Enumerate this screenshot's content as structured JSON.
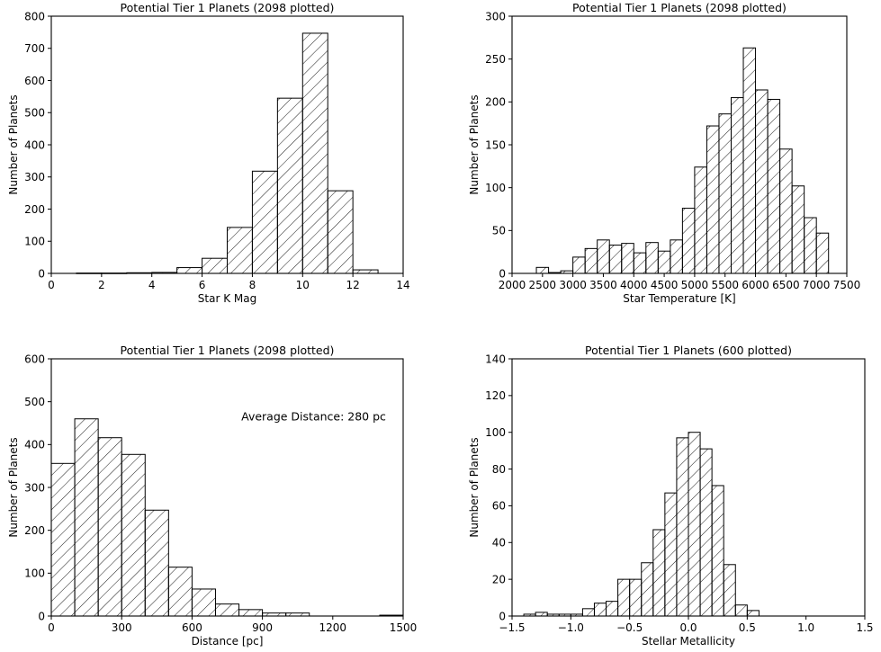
{
  "chart_data": [
    {
      "type": "histogram",
      "title": "Potential Tier 1 Planets (2098 plotted)",
      "xlabel": "Star K Mag",
      "ylabel": "Number of Planets",
      "xlim": [
        0,
        14
      ],
      "ylim": [
        0,
        800
      ],
      "xticks": [
        0,
        2,
        4,
        6,
        8,
        10,
        12,
        14
      ],
      "yticks": [
        0,
        100,
        200,
        300,
        400,
        500,
        600,
        700,
        800
      ],
      "bins": [
        1,
        2,
        3,
        4,
        5,
        6,
        7,
        8,
        9,
        10,
        11,
        12,
        13
      ],
      "values": [
        1,
        1,
        2,
        3,
        18,
        47,
        143,
        318,
        545,
        747,
        257,
        11
      ],
      "annotation": ""
    },
    {
      "type": "histogram",
      "title": "Potential Tier 1 Planets (2098 plotted)",
      "xlabel": "Star Temperature [K]",
      "ylabel": "Number of Planets",
      "xlim": [
        2000,
        7500
      ],
      "ylim": [
        0,
        300
      ],
      "xticks": [
        2000,
        2500,
        3000,
        3500,
        4000,
        4500,
        5000,
        5500,
        6000,
        6500,
        7000,
        7500
      ],
      "yticks": [
        0,
        50,
        100,
        150,
        200,
        250,
        300
      ],
      "bins": [
        2400,
        2600,
        2800,
        3000,
        3200,
        3400,
        3600,
        3800,
        4000,
        4200,
        4400,
        4600,
        4800,
        5000,
        5200,
        5400,
        5600,
        5800,
        6000,
        6200,
        6400,
        6600,
        6800,
        7000,
        7200
      ],
      "values": [
        7,
        1,
        3,
        19,
        29,
        39,
        33,
        35,
        24,
        36,
        26,
        39,
        76,
        124,
        172,
        186,
        205,
        263,
        214,
        203,
        145,
        102,
        65,
        47
      ],
      "annotation": ""
    },
    {
      "type": "histogram",
      "title": "Potential Tier 1 Planets (2098 plotted)",
      "xlabel": "Distance [pc]",
      "ylabel": "Number of Planets",
      "xlim": [
        0,
        1500
      ],
      "ylim": [
        0,
        600
      ],
      "xticks": [
        0,
        300,
        600,
        900,
        1200,
        1500
      ],
      "yticks": [
        0,
        100,
        200,
        300,
        400,
        500,
        600
      ],
      "bins": [
        0,
        100,
        200,
        300,
        400,
        500,
        600,
        700,
        800,
        900,
        1000,
        1100,
        1200,
        1300,
        1400,
        1500
      ],
      "values": [
        356,
        460,
        416,
        377,
        247,
        114,
        63,
        28,
        15,
        7,
        7,
        0,
        0,
        0,
        2
      ],
      "annotation": "Average Distance: 280 pc"
    },
    {
      "type": "histogram",
      "title": "Potential Tier 1 Planets (600 plotted)",
      "xlabel": "Stellar Metallicity",
      "ylabel": "Number of Planets",
      "xlim": [
        -1.5,
        1.5
      ],
      "ylim": [
        0,
        140
      ],
      "xticks": [
        -1.5,
        -1.0,
        -0.5,
        0.0,
        0.5,
        1.0,
        1.5
      ],
      "xtick_labels": [
        "−1.5",
        "−1.0",
        "−0.5",
        "0.0",
        "0.5",
        "1.0",
        "1.5"
      ],
      "yticks": [
        0,
        20,
        40,
        60,
        80,
        100,
        120,
        140
      ],
      "bins": [
        -1.4,
        -1.3,
        -1.2,
        -1.1,
        -1.0,
        -0.9,
        -0.8,
        -0.7,
        -0.6,
        -0.5,
        -0.4,
        -0.3,
        -0.2,
        -0.1,
        0.0,
        0.1,
        0.2,
        0.3,
        0.4,
        0.5,
        0.6
      ],
      "values": [
        1,
        2,
        1,
        1,
        1,
        4,
        7,
        8,
        20,
        20,
        29,
        47,
        67,
        97,
        100,
        91,
        71,
        28,
        6,
        3
      ],
      "annotation": ""
    }
  ]
}
